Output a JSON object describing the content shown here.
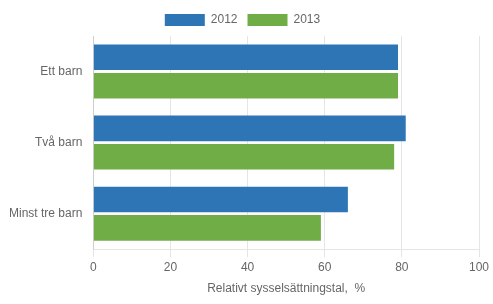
{
  "chart_data": {
    "type": "bar",
    "orientation": "horizontal",
    "categories": [
      "Ett barn",
      "Två barn",
      "Minst tre barn"
    ],
    "series": [
      {
        "name": "2012",
        "color": "#2E75B6",
        "values": [
          79,
          81,
          66
        ]
      },
      {
        "name": "2013",
        "color": "#70AD47",
        "values": [
          79,
          78,
          59
        ]
      }
    ],
    "xlabel": "Relativt sysselsättningstal,  %",
    "xlim": [
      0,
      100
    ],
    "xticks": [
      0,
      20,
      40,
      60,
      80,
      100
    ],
    "grid": true,
    "legend": "top"
  }
}
